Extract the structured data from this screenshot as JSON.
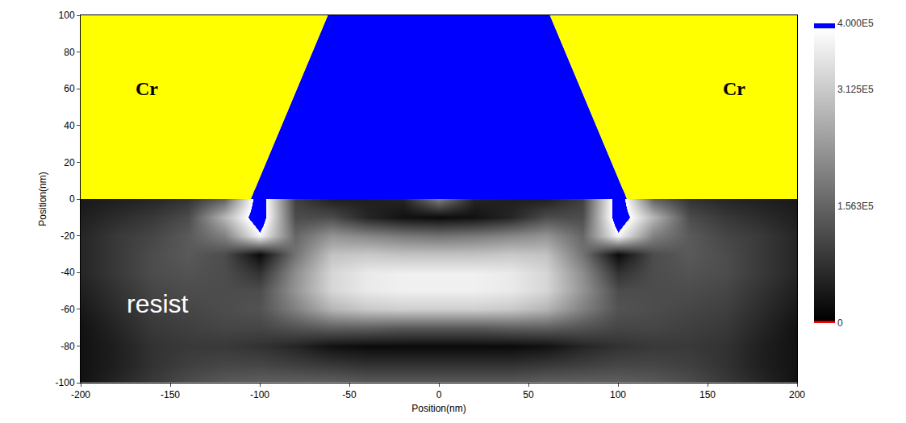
{
  "chart_data": {
    "type": "heatmap",
    "x_label": "Position(nm)",
    "y_label": "Position(nm)",
    "xlim": [
      -200,
      200
    ],
    "xticks": [
      -200,
      -150,
      -100,
      -50,
      0,
      50,
      100,
      150,
      200
    ],
    "ylim": [
      -100,
      100
    ],
    "yticks": [
      -100,
      -80,
      -60,
      -40,
      -20,
      0,
      20,
      40,
      60,
      80,
      100
    ],
    "x": [
      -200,
      -180,
      -160,
      -140,
      -120,
      -100,
      -80,
      -60,
      -40,
      -20,
      0,
      20,
      40,
      60,
      80,
      100,
      120,
      140,
      160,
      180,
      200
    ],
    "y": [
      0,
      -10,
      -20,
      -30,
      -40,
      -50,
      -60,
      -70,
      -80,
      -90,
      -100
    ],
    "z": [
      [
        40000,
        50000,
        60000,
        80000,
        150000,
        450000,
        100000,
        50000,
        50000,
        60000,
        200000,
        60000,
        50000,
        50000,
        100000,
        450000,
        150000,
        80000,
        60000,
        50000,
        40000
      ],
      [
        50000,
        70000,
        90000,
        120000,
        280000,
        450000,
        120000,
        120000,
        60000,
        30000,
        20000,
        30000,
        60000,
        120000,
        120000,
        450000,
        280000,
        120000,
        90000,
        70000,
        50000
      ],
      [
        60000,
        90000,
        110000,
        140000,
        200000,
        380000,
        160000,
        230000,
        210000,
        190000,
        180000,
        190000,
        210000,
        230000,
        160000,
        380000,
        200000,
        140000,
        110000,
        90000,
        60000
      ],
      [
        60000,
        90000,
        120000,
        140000,
        120000,
        20000,
        180000,
        300000,
        310000,
        300000,
        300000,
        300000,
        310000,
        300000,
        180000,
        20000,
        120000,
        140000,
        120000,
        90000,
        60000
      ],
      [
        60000,
        90000,
        120000,
        130000,
        120000,
        80000,
        220000,
        330000,
        360000,
        370000,
        370000,
        370000,
        360000,
        330000,
        220000,
        80000,
        120000,
        130000,
        120000,
        90000,
        60000
      ],
      [
        50000,
        80000,
        110000,
        120000,
        120000,
        120000,
        230000,
        330000,
        360000,
        370000,
        370000,
        370000,
        360000,
        330000,
        230000,
        120000,
        120000,
        120000,
        110000,
        80000,
        50000
      ],
      [
        40000,
        70000,
        100000,
        110000,
        120000,
        130000,
        200000,
        280000,
        310000,
        320000,
        320000,
        320000,
        310000,
        280000,
        200000,
        130000,
        120000,
        110000,
        100000,
        70000,
        40000
      ],
      [
        30000,
        60000,
        90000,
        100000,
        110000,
        110000,
        130000,
        150000,
        150000,
        140000,
        140000,
        140000,
        150000,
        150000,
        130000,
        110000,
        110000,
        100000,
        90000,
        60000,
        30000
      ],
      [
        30000,
        50000,
        80000,
        90000,
        90000,
        80000,
        60000,
        30000,
        20000,
        20000,
        20000,
        20000,
        20000,
        30000,
        60000,
        80000,
        90000,
        90000,
        80000,
        50000,
        30000
      ],
      [
        30000,
        50000,
        80000,
        100000,
        110000,
        110000,
        100000,
        90000,
        80000,
        80000,
        80000,
        80000,
        80000,
        90000,
        100000,
        110000,
        110000,
        100000,
        80000,
        50000,
        30000
      ],
      [
        30000,
        60000,
        90000,
        120000,
        140000,
        150000,
        150000,
        150000,
        140000,
        140000,
        140000,
        140000,
        140000,
        150000,
        150000,
        150000,
        140000,
        120000,
        90000,
        60000,
        30000
      ]
    ],
    "colorbar": {
      "range": [
        0,
        400000
      ],
      "ticks": [
        0,
        {
          "value": 156300,
          "label": "1.563E5"
        },
        {
          "value": 312500,
          "label": "3.125E5"
        },
        {
          "value": 400000,
          "label": "4.000E5"
        }
      ]
    },
    "regions": [
      {
        "color": "#0000ff",
        "polygon": [
          [
            -105,
            0
          ],
          [
            -62,
            100
          ],
          [
            62,
            100
          ],
          [
            105,
            0
          ]
        ]
      },
      {
        "color": "#ffff00",
        "polygon": [
          [
            -200,
            0
          ],
          [
            -105,
            0
          ],
          [
            -62,
            100
          ],
          [
            -200,
            100
          ]
        ]
      },
      {
        "color": "#ffff00",
        "polygon": [
          [
            105,
            0
          ],
          [
            200,
            0
          ],
          [
            200,
            100
          ],
          [
            62,
            100
          ]
        ]
      }
    ],
    "annotations": [
      {
        "text": "Cr",
        "x": -163,
        "y": 60,
        "color": "#000000"
      },
      {
        "text": "Cr",
        "x": 165,
        "y": 60,
        "color": "#000000"
      },
      {
        "text": "resist",
        "x": -157,
        "y": -57,
        "color": "#ffffff"
      }
    ]
  }
}
